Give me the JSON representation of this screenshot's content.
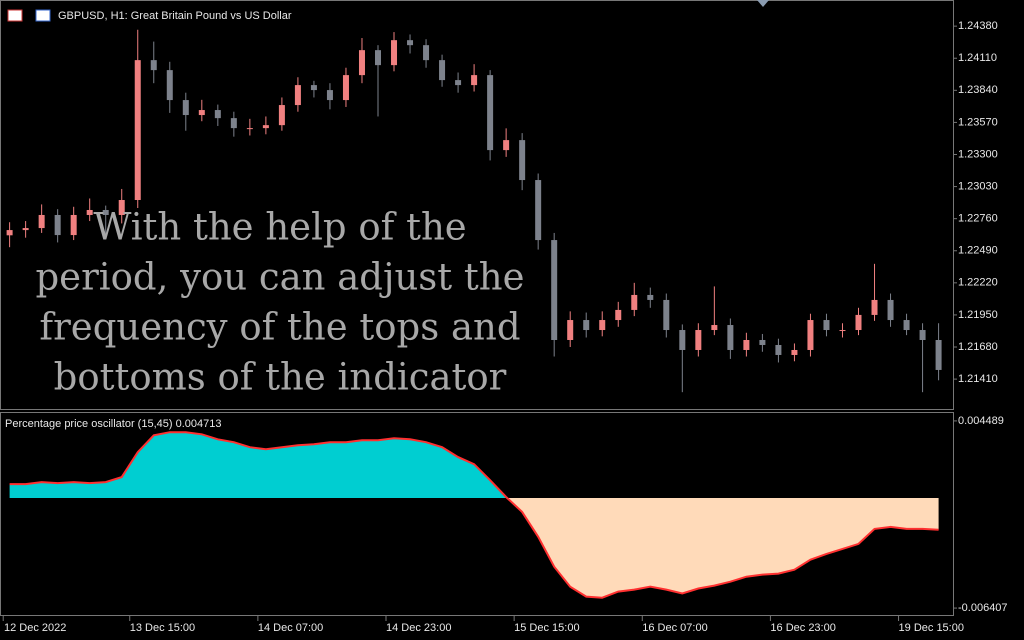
{
  "chart_data": [
    {
      "type": "candlestick",
      "title": "GBPUSD, H1:  Great Britain Pound vs US Dollar",
      "annotation": [
        "With the help of the",
        "period, you can adjust the",
        "frequency of the tops and",
        "bottoms of the indicator"
      ],
      "up_color": "#f08080",
      "down_color": "#7d828c",
      "ohlc": [
        [
          1.2262,
          1.2273,
          1.2252,
          1.22664
        ],
        [
          1.22664,
          1.2274,
          1.226,
          1.22681
        ],
        [
          1.22681,
          1.2288,
          1.2264,
          1.22791
        ],
        [
          1.22791,
          1.2284,
          1.2256,
          1.22622
        ],
        [
          1.22622,
          1.2286,
          1.2258,
          1.22791
        ],
        [
          1.22791,
          1.2293,
          1.2274,
          1.22833
        ],
        [
          1.22833,
          1.2287,
          1.226,
          1.22791
        ],
        [
          1.22791,
          1.2301,
          1.2272,
          1.22917
        ],
        [
          1.22917,
          1.2435,
          1.2285,
          1.24094
        ],
        [
          1.24094,
          1.2425,
          1.239,
          1.2401
        ],
        [
          1.2401,
          1.2408,
          1.2365,
          1.23758
        ],
        [
          1.23758,
          1.2382,
          1.235,
          1.23632
        ],
        [
          1.23632,
          1.2376,
          1.2358,
          1.23674
        ],
        [
          1.23674,
          1.2372,
          1.2354,
          1.23606
        ],
        [
          1.23606,
          1.2366,
          1.2345,
          1.23522
        ],
        [
          1.23522,
          1.236,
          1.2346,
          1.23522
        ],
        [
          1.23522,
          1.2362,
          1.2347,
          1.23547
        ],
        [
          1.23547,
          1.2378,
          1.235,
          1.23716
        ],
        [
          1.23716,
          1.2395,
          1.2366,
          1.23884
        ],
        [
          1.23884,
          1.2392,
          1.2378,
          1.23842
        ],
        [
          1.23842,
          1.239,
          1.2368,
          1.23758
        ],
        [
          1.23758,
          1.2403,
          1.237,
          1.23968
        ],
        [
          1.23968,
          1.2428,
          1.239,
          1.24178
        ],
        [
          1.24178,
          1.2422,
          1.2362,
          1.24052
        ],
        [
          1.24052,
          1.2433,
          1.24,
          1.24262
        ],
        [
          1.24262,
          1.2431,
          1.2415,
          1.2422
        ],
        [
          1.2422,
          1.2427,
          1.2403,
          1.24094
        ],
        [
          1.24094,
          1.2414,
          1.2387,
          1.23926
        ],
        [
          1.23926,
          1.2399,
          1.2382,
          1.23884
        ],
        [
          1.23884,
          1.2406,
          1.2383,
          1.23968
        ],
        [
          1.23968,
          1.2401,
          1.2325,
          1.23337
        ],
        [
          1.23337,
          1.2352,
          1.2328,
          1.23421
        ],
        [
          1.23421,
          1.2348,
          1.23,
          1.23085
        ],
        [
          1.23085,
          1.2314,
          1.225,
          1.2258
        ],
        [
          1.2258,
          1.2264,
          1.216,
          1.21739
        ],
        [
          1.21739,
          1.2198,
          1.2168,
          1.21907
        ],
        [
          1.21907,
          1.2197,
          1.2176,
          1.21823
        ],
        [
          1.21823,
          1.2198,
          1.2177,
          1.21907
        ],
        [
          1.21907,
          1.2206,
          1.2185,
          1.21992
        ],
        [
          1.21992,
          1.2222,
          1.2194,
          1.22118
        ],
        [
          1.22118,
          1.2218,
          1.2201,
          1.22076
        ],
        [
          1.22076,
          1.2213,
          1.2176,
          1.21823
        ],
        [
          1.21823,
          1.2187,
          1.213,
          1.21655
        ],
        [
          1.21655,
          1.2188,
          1.216,
          1.21823
        ],
        [
          1.21823,
          1.2219,
          1.2178,
          1.21865
        ],
        [
          1.21865,
          1.2192,
          1.2158,
          1.21655
        ],
        [
          1.21655,
          1.218,
          1.216,
          1.21739
        ],
        [
          1.21739,
          1.2179,
          1.2164,
          1.21697
        ],
        [
          1.21697,
          1.2175,
          1.2155,
          1.21613
        ],
        [
          1.21613,
          1.2171,
          1.2156,
          1.21655
        ],
        [
          1.21655,
          1.2196,
          1.216,
          1.21907
        ],
        [
          1.21907,
          1.2196,
          1.2177,
          1.21823
        ],
        [
          1.21823,
          1.2188,
          1.2176,
          1.21823
        ],
        [
          1.21823,
          1.2201,
          1.2178,
          1.2195
        ],
        [
          1.2195,
          1.2238,
          1.219,
          1.22076
        ],
        [
          1.22076,
          1.2213,
          1.2185,
          1.21907
        ],
        [
          1.21907,
          1.2196,
          1.2178,
          1.21823
        ],
        [
          1.21823,
          1.2188,
          1.213,
          1.21739
        ],
        [
          1.21739,
          1.2188,
          1.214,
          1.21487
        ]
      ],
      "ylim": [
        1.2115,
        1.246
      ],
      "yticks": [
        {
          "value": 1.2438,
          "label": "1.24380"
        },
        {
          "value": 1.2411,
          "label": "1.24110"
        },
        {
          "value": 1.2384,
          "label": "1.23840"
        },
        {
          "value": 1.2357,
          "label": "1.23570"
        },
        {
          "value": 1.233,
          "label": "1.23300"
        },
        {
          "value": 1.2303,
          "label": "1.23030"
        },
        {
          "value": 1.2276,
          "label": "1.22760"
        },
        {
          "value": 1.2249,
          "label": "1.22490"
        },
        {
          "value": 1.2222,
          "label": "1.22220"
        },
        {
          "value": 1.2195,
          "label": "1.21950"
        },
        {
          "value": 1.2168,
          "label": "1.21680"
        },
        {
          "value": 1.2141,
          "label": "1.21410"
        }
      ],
      "xlim": [
        -0.6,
        58.9
      ],
      "xticks": [
        {
          "value": -0.4,
          "label": "12 Dec 2022"
        },
        {
          "value": 7.5,
          "label": "13 Dec 15:00"
        },
        {
          "value": 15.5,
          "label": "14 Dec 07:00"
        },
        {
          "value": 23.5,
          "label": "14 Dec 23:00"
        },
        {
          "value": 31.5,
          "label": "15 Dec 15:00"
        },
        {
          "value": 39.5,
          "label": "16 Dec 07:00"
        },
        {
          "value": 47.5,
          "label": "16 Dec 23:00"
        },
        {
          "value": 55.5,
          "label": "19 Dec 15:00"
        }
      ]
    },
    {
      "type": "area",
      "title": "Percentage price oscillator (15,45) 0.004713",
      "line_color": "#ff3030",
      "positive_color": "#00ced1",
      "negative_color": "#ffdab9",
      "values": [
        0.00081,
        0.00081,
        0.00093,
        0.00087,
        0.00093,
        0.00087,
        0.00093,
        0.00122,
        0.00267,
        0.00365,
        0.00383,
        0.00383,
        0.00371,
        0.00342,
        0.00325,
        0.00296,
        0.00284,
        0.00296,
        0.00307,
        0.00313,
        0.00325,
        0.00325,
        0.00336,
        0.00336,
        0.00348,
        0.00342,
        0.00325,
        0.00296,
        0.00238,
        0.00197,
        0.00104,
        6e-05,
        -0.00081,
        -0.00226,
        -0.004,
        -0.00516,
        -0.00574,
        -0.0058,
        -0.00545,
        -0.00533,
        -0.00516,
        -0.00533,
        -0.00556,
        -0.00527,
        -0.0051,
        -0.00487,
        -0.00458,
        -0.00446,
        -0.0044,
        -0.00417,
        -0.00359,
        -0.00325,
        -0.00296,
        -0.00267,
        -0.0018,
        -0.00168,
        -0.0018,
        -0.0018,
        -0.00185
      ],
      "ylim": [
        -0.00681,
        0.00495
      ],
      "yticks": [
        0.004489,
        -0.006407
      ]
    }
  ]
}
